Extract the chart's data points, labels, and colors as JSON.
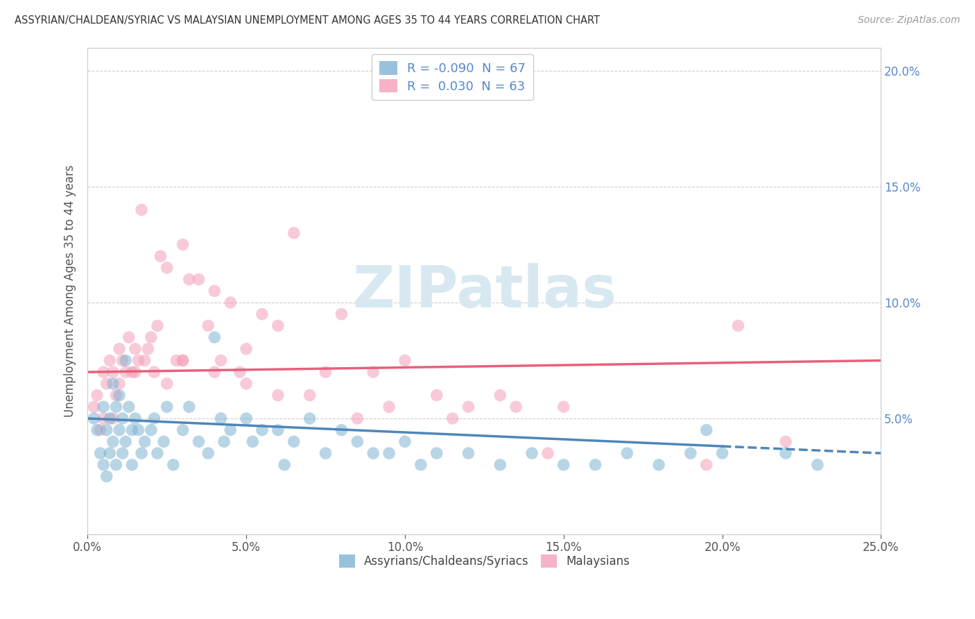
{
  "title": "ASSYRIAN/CHALDEAN/SYRIAC VS MALAYSIAN UNEMPLOYMENT AMONG AGES 35 TO 44 YEARS CORRELATION CHART",
  "source": "Source: ZipAtlas.com",
  "ylabel": "Unemployment Among Ages 35 to 44 years",
  "xlim": [
    0.0,
    25.0
  ],
  "ylim": [
    0.0,
    21.0
  ],
  "yticks_right": [
    5.0,
    10.0,
    15.0,
    20.0
  ],
  "ytick_labels_right": [
    "5.0%",
    "10.0%",
    "15.0%",
    "20.0%"
  ],
  "xticks": [
    0,
    5,
    10,
    15,
    20,
    25
  ],
  "xtick_labels": [
    "0.0%",
    "5.0%",
    "10.0%",
    "15.0%",
    "20.0%",
    "25.0%"
  ],
  "legend_top": [
    "R = -0.090  N = 67",
    "R =  0.030  N = 63"
  ],
  "legend_bottom": [
    "Assyrians/Chaldeans/Syriacs",
    "Malaysians"
  ],
  "blue_color": "#7fb3d3",
  "pink_color": "#f4a0b8",
  "trend_blue_color": "#4f86b8",
  "trend_pink_color": "#e8607a",
  "right_axis_color": "#5588cc",
  "watermark_text": "ZIPatlas",
  "watermark_color": "#d8e8f0",
  "watermark_fontsize": 60,
  "grid_color": "#cccccc",
  "background": "#ffffff",
  "blue_x": [
    0.2,
    0.3,
    0.4,
    0.5,
    0.5,
    0.6,
    0.6,
    0.7,
    0.7,
    0.8,
    0.8,
    0.9,
    0.9,
    1.0,
    1.0,
    1.1,
    1.1,
    1.2,
    1.2,
    1.3,
    1.4,
    1.4,
    1.5,
    1.6,
    1.7,
    1.8,
    2.0,
    2.1,
    2.2,
    2.4,
    2.5,
    2.7,
    3.0,
    3.2,
    3.5,
    3.8,
    4.0,
    4.2,
    4.3,
    4.5,
    5.0,
    5.2,
    5.5,
    6.0,
    6.2,
    6.5,
    7.0,
    7.5,
    8.0,
    8.5,
    9.0,
    9.5,
    10.0,
    10.5,
    11.0,
    12.0,
    13.0,
    14.0,
    15.0,
    16.0,
    17.0,
    18.0,
    19.0,
    19.5,
    20.0,
    22.0,
    23.0
  ],
  "blue_y": [
    5.0,
    4.5,
    3.5,
    5.5,
    3.0,
    4.5,
    2.5,
    5.0,
    3.5,
    6.5,
    4.0,
    5.5,
    3.0,
    6.0,
    4.5,
    5.0,
    3.5,
    7.5,
    4.0,
    5.5,
    4.5,
    3.0,
    5.0,
    4.5,
    3.5,
    4.0,
    4.5,
    5.0,
    3.5,
    4.0,
    5.5,
    3.0,
    4.5,
    5.5,
    4.0,
    3.5,
    8.5,
    5.0,
    4.0,
    4.5,
    5.0,
    4.0,
    4.5,
    4.5,
    3.0,
    4.0,
    5.0,
    3.5,
    4.5,
    4.0,
    3.5,
    3.5,
    4.0,
    3.0,
    3.5,
    3.5,
    3.0,
    3.5,
    3.0,
    3.0,
    3.5,
    3.0,
    3.5,
    4.5,
    3.5,
    3.5,
    3.0
  ],
  "pink_x": [
    0.2,
    0.3,
    0.4,
    0.5,
    0.5,
    0.6,
    0.7,
    0.8,
    0.8,
    0.9,
    1.0,
    1.0,
    1.1,
    1.2,
    1.3,
    1.4,
    1.5,
    1.6,
    1.7,
    1.8,
    1.9,
    2.0,
    2.1,
    2.2,
    2.3,
    2.5,
    2.8,
    3.0,
    3.0,
    3.2,
    3.5,
    3.8,
    4.0,
    4.2,
    4.5,
    4.8,
    5.0,
    5.5,
    6.0,
    6.5,
    7.5,
    8.0,
    9.0,
    10.0,
    11.0,
    12.0,
    13.0,
    14.5,
    19.5,
    20.5,
    1.5,
    2.5,
    3.0,
    4.0,
    5.0,
    6.0,
    7.0,
    8.5,
    9.5,
    11.5,
    13.5,
    15.0,
    22.0
  ],
  "pink_y": [
    5.5,
    6.0,
    4.5,
    5.0,
    7.0,
    6.5,
    7.5,
    7.0,
    5.0,
    6.0,
    8.0,
    6.5,
    7.5,
    7.0,
    8.5,
    7.0,
    8.0,
    7.5,
    14.0,
    7.5,
    8.0,
    8.5,
    7.0,
    9.0,
    12.0,
    11.5,
    7.5,
    12.5,
    7.5,
    11.0,
    11.0,
    9.0,
    10.5,
    7.5,
    10.0,
    7.0,
    8.0,
    9.5,
    9.0,
    13.0,
    7.0,
    9.5,
    7.0,
    7.5,
    6.0,
    5.5,
    6.0,
    3.5,
    3.0,
    9.0,
    7.0,
    6.5,
    7.5,
    7.0,
    6.5,
    6.0,
    6.0,
    5.0,
    5.5,
    5.0,
    5.5,
    5.5,
    4.0
  ],
  "blue_trend_x0": 0.0,
  "blue_trend_x1": 25.0,
  "blue_trend_y0": 5.0,
  "blue_trend_y1": 3.5,
  "pink_trend_x0": 0.0,
  "pink_trend_x1": 25.0,
  "pink_trend_y0": 7.0,
  "pink_trend_y1": 7.5
}
